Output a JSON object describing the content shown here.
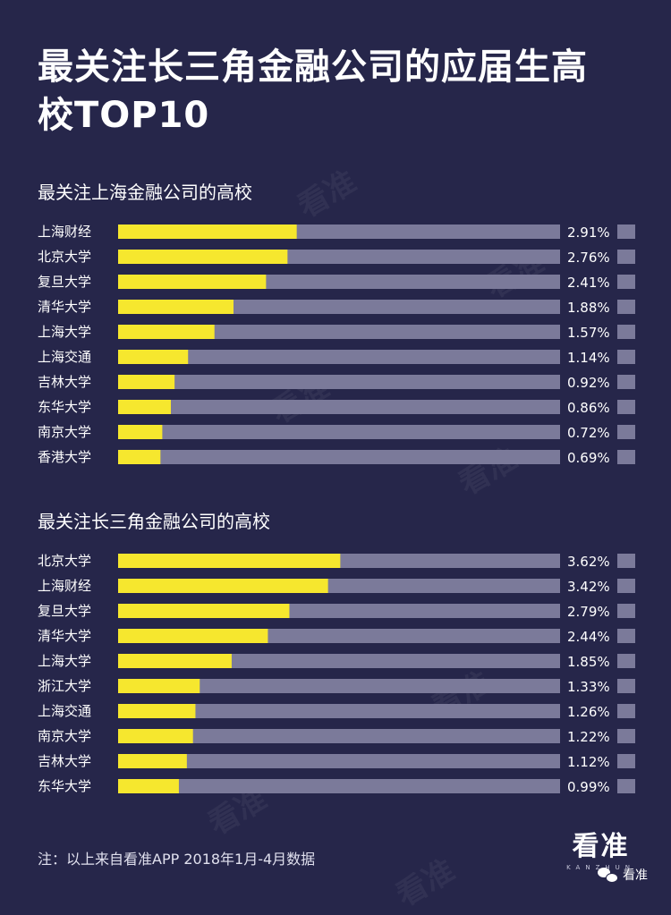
{
  "header": {
    "title": "最关注长三角金融公司的应届生高校TOP10"
  },
  "sections": [
    {
      "title": "最关注上海金融公司的高校"
    },
    {
      "title": "最关注长三角金融公司的高校"
    }
  ],
  "chart_data": [
    {
      "type": "bar",
      "orientation": "horizontal",
      "title": "最关注上海金融公司的高校",
      "categories": [
        "上海财经",
        "北京大学",
        "复旦大学",
        "清华大学",
        "上海大学",
        "上海交通",
        "吉林大学",
        "东华大学",
        "南京大学",
        "香港大学"
      ],
      "values": [
        2.91,
        2.76,
        2.41,
        1.88,
        1.57,
        1.14,
        0.92,
        0.86,
        0.72,
        0.69
      ],
      "value_labels": [
        "2.91%",
        "2.76%",
        "2.41%",
        "1.88%",
        "1.57%",
        "1.14%",
        "0.92%",
        "0.86%",
        "0.72%",
        "0.69%"
      ],
      "unit": "%",
      "xlim": [
        0,
        7.2
      ],
      "bar_color": "#f6e72e",
      "track_color": "#7b7a9a"
    },
    {
      "type": "bar",
      "orientation": "horizontal",
      "title": "最关注长三角金融公司的高校",
      "categories": [
        "北京大学",
        "上海财经",
        "复旦大学",
        "清华大学",
        "上海大学",
        "浙江大学",
        "上海交通",
        "南京大学",
        "吉林大学",
        "东华大学"
      ],
      "values": [
        3.62,
        3.42,
        2.79,
        2.44,
        1.85,
        1.33,
        1.26,
        1.22,
        1.12,
        0.99
      ],
      "value_labels": [
        "3.62%",
        "3.42%",
        "2.79%",
        "2.44%",
        "1.85%",
        "1.33%",
        "1.26%",
        "1.22%",
        "1.12%",
        "0.99%"
      ],
      "unit": "%",
      "xlim": [
        0,
        7.2
      ],
      "bar_color": "#f6e72e",
      "track_color": "#7b7a9a"
    }
  ],
  "footer": {
    "note": "注：以上来自看准APP 2018年1月-4月数据",
    "brand": "看准",
    "brand_sub": "KANZHUN",
    "wechat": "看准"
  },
  "colors": {
    "background": "#26264a",
    "bar": "#f6e72e",
    "track": "#7b7a9a"
  }
}
